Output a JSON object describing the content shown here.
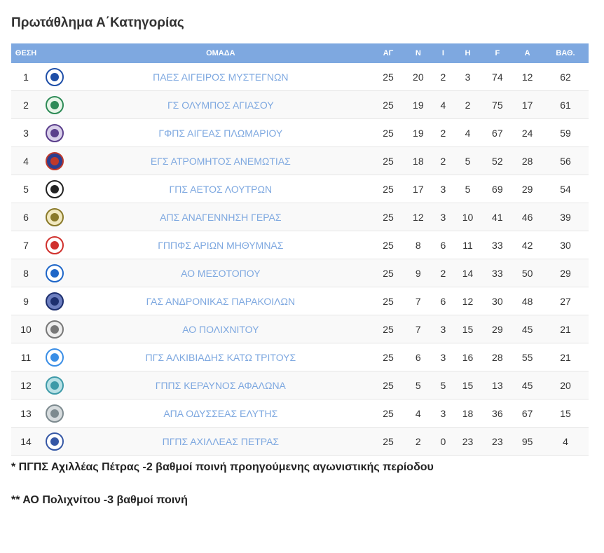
{
  "title": "Πρωτάθλημα Α΄Κατηγορίας",
  "headers": {
    "pos": "ΘΕΣΗ",
    "team": "ΟΜΑΔΑ",
    "played": "ΑΓ",
    "won": "Ν",
    "draw": "Ι",
    "lost": "Η",
    "gf": "F",
    "ga": "A",
    "pts": "ΒΑΘ."
  },
  "rows": [
    {
      "pos": "1",
      "team": "ΠΑΕΣ ΑΙΓΕΙΡΟΣ ΜΥΣΤΕΓΝΩΝ",
      "played": "25",
      "won": "20",
      "draw": "2",
      "lost": "3",
      "gf": "74",
      "ga": "12",
      "pts": "62",
      "logo": "crest-blue-white-icon"
    },
    {
      "pos": "2",
      "team": "ΓΣ ΟΛΥΜΠΟΣ ΑΓΙΑΣΟΥ",
      "played": "25",
      "won": "19",
      "draw": "4",
      "lost": "2",
      "gf": "75",
      "ga": "17",
      "pts": "61",
      "logo": "crest-green-white-icon"
    },
    {
      "pos": "3",
      "team": "ΓΦΠΣ ΑΙΓΕΑΣ ΠΛΩΜΑΡΙΟΥ",
      "played": "25",
      "won": "19",
      "draw": "2",
      "lost": "4",
      "gf": "67",
      "ga": "24",
      "pts": "59",
      "logo": "crest-purple-icon"
    },
    {
      "pos": "4",
      "team": "ΕΓΣ ΑΤΡΟΜΗΤΟΣ ΑΝΕΜΩΤΙΑΣ",
      "played": "25",
      "won": "18",
      "draw": "2",
      "lost": "5",
      "gf": "52",
      "ga": "28",
      "pts": "56",
      "logo": "crest-red-blue-icon"
    },
    {
      "pos": "5",
      "team": "ΓΠΣ ΑΕΤΟΣ ΛΟΥΤΡΩΝ",
      "played": "25",
      "won": "17",
      "draw": "3",
      "lost": "5",
      "gf": "69",
      "ga": "29",
      "pts": "54",
      "logo": "crest-black-white-icon"
    },
    {
      "pos": "6",
      "team": "ΑΠΣ ΑΝΑΓΕΝΝΗΣΗ ΓΕΡΑΣ",
      "played": "25",
      "won": "12",
      "draw": "3",
      "lost": "10",
      "gf": "41",
      "ga": "46",
      "pts": "39",
      "logo": "crest-olive-icon"
    },
    {
      "pos": "7",
      "team": "ΓΠΠΦΣ ΑΡΙΩΝ ΜΗΘΥΜΝΑΣ",
      "played": "25",
      "won": "8",
      "draw": "6",
      "lost": "11",
      "gf": "33",
      "ga": "42",
      "pts": "30",
      "logo": "crest-red-white-icon"
    },
    {
      "pos": "8",
      "team": "ΑΟ ΜΕΣΟΤΟΠΟΥ",
      "played": "25",
      "won": "9",
      "draw": "2",
      "lost": "14",
      "gf": "33",
      "ga": "50",
      "pts": "29",
      "logo": "crest-blue-shield-icon"
    },
    {
      "pos": "9",
      "team": "ΓΑΣ ΑΝΔΡΟΝΙΚΑΣ ΠΑΡΑΚΟΙΛΩΝ",
      "played": "25",
      "won": "7",
      "draw": "6",
      "lost": "12",
      "gf": "30",
      "ga": "48",
      "pts": "27",
      "logo": "crest-navy-icon"
    },
    {
      "pos": "10",
      "team": "ΑΟ ΠΟΛΙΧΝΙΤΟΥ",
      "played": "25",
      "won": "7",
      "draw": "3",
      "lost": "15",
      "gf": "29",
      "ga": "45",
      "pts": "21",
      "logo": "crest-small-grey-icon"
    },
    {
      "pos": "11",
      "team": "ΠΓΣ ΑΛΚΙΒΙΑΔΗΣ ΚΑΤΩ ΤΡΙΤΟΥΣ",
      "played": "25",
      "won": "6",
      "draw": "3",
      "lost": "16",
      "gf": "28",
      "ga": "55",
      "pts": "21",
      "logo": "crest-lightblue-icon"
    },
    {
      "pos": "12",
      "team": "ΓΠΠΣ ΚΕΡΑΥΝΟΣ ΑΦΑΛΩΝΑ",
      "played": "25",
      "won": "5",
      "draw": "5",
      "lost": "15",
      "gf": "13",
      "ga": "45",
      "pts": "20",
      "logo": "crest-teal-icon"
    },
    {
      "pos": "13",
      "team": "ΑΠΑ ΟΔΥΣΣΕΑΣ ΕΛΥΤΗΣ",
      "played": "25",
      "won": "4",
      "draw": "3",
      "lost": "18",
      "gf": "36",
      "ga": "67",
      "pts": "15",
      "logo": "crest-grey-icon"
    },
    {
      "pos": "14",
      "team": "ΠΓΠΣ ΑΧΙΛΛΕΑΣ ΠΕΤΡΑΣ",
      "played": "25",
      "won": "2",
      "draw": "0",
      "lost": "23",
      "gf": "23",
      "ga": "95",
      "pts": "4",
      "logo": "crest-blue-outline-icon"
    }
  ],
  "notes": [
    "* ΠΓΠΣ Αχιλλέας Πέτρας -2 βαθμοί ποινή προηγούμενης αγωνιστικής περίοδου",
    "** ΑΟ Πολιχνίτου -3 βαθμοί ποινή"
  ],
  "colors": {
    "header_bg": "#7ea8e0",
    "link": "#7ea8e0"
  }
}
